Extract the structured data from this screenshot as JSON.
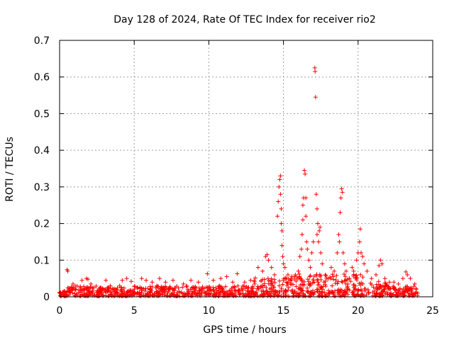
{
  "chart_data": {
    "type": "scatter",
    "title": "Day 128 of 2024, Rate Of TEC Index for receiver rio2",
    "xlabel": "GPS time / hours",
    "ylabel": "ROTI / TECUs",
    "xlim": [
      0,
      25
    ],
    "ylim": [
      0,
      0.7
    ],
    "xticks": [
      "0",
      "5",
      "10",
      "15",
      "20",
      "25"
    ],
    "yticks": [
      "0",
      "0.1",
      "0.2",
      "0.3",
      "0.4",
      "0.5",
      "0.6",
      "0.7"
    ],
    "grid": true,
    "marker": "+",
    "color": "#ff0000",
    "series": [
      {
        "name": "rio2",
        "points": [
          [
            0.0,
            0.012
          ],
          [
            0.5,
            0.074
          ],
          [
            0.55,
            0.07
          ],
          [
            0.9,
            0.035
          ],
          [
            1.5,
            0.045
          ],
          [
            1.8,
            0.05
          ],
          [
            1.9,
            0.048
          ],
          [
            2.1,
            0.035
          ],
          [
            3.1,
            0.045
          ],
          [
            3.4,
            0.03
          ],
          [
            4.2,
            0.045
          ],
          [
            4.5,
            0.05
          ],
          [
            4.8,
            0.042
          ],
          [
            5.5,
            0.05
          ],
          [
            5.8,
            0.045
          ],
          [
            6.2,
            0.04
          ],
          [
            6.7,
            0.05
          ],
          [
            7.1,
            0.04
          ],
          [
            7.6,
            0.045
          ],
          [
            8.3,
            0.035
          ],
          [
            8.8,
            0.045
          ],
          [
            9.3,
            0.04
          ],
          [
            9.9,
            0.063
          ],
          [
            10.3,
            0.045
          ],
          [
            10.8,
            0.05
          ],
          [
            11.2,
            0.055
          ],
          [
            11.6,
            0.04
          ],
          [
            11.9,
            0.063
          ],
          [
            12.4,
            0.04
          ],
          [
            12.8,
            0.045
          ],
          [
            13.3,
            0.08
          ],
          [
            13.6,
            0.07
          ],
          [
            13.8,
            0.11
          ],
          [
            13.9,
            0.115
          ],
          [
            14.0,
            0.1
          ],
          [
            14.2,
            0.08
          ],
          [
            14.4,
            0.06
          ],
          [
            14.6,
            0.22
          ],
          [
            14.65,
            0.26
          ],
          [
            14.7,
            0.3
          ],
          [
            14.75,
            0.32
          ],
          [
            14.8,
            0.33
          ],
          [
            14.8,
            0.28
          ],
          [
            14.85,
            0.24
          ],
          [
            14.85,
            0.2
          ],
          [
            14.9,
            0.18
          ],
          [
            14.9,
            0.14
          ],
          [
            14.95,
            0.11
          ],
          [
            15.0,
            0.09
          ],
          [
            15.1,
            0.08
          ],
          [
            15.3,
            0.06
          ],
          [
            15.5,
            0.05
          ],
          [
            15.8,
            0.06
          ],
          [
            16.0,
            0.07
          ],
          [
            16.1,
            0.11
          ],
          [
            16.2,
            0.13
          ],
          [
            16.25,
            0.17
          ],
          [
            16.3,
            0.21
          ],
          [
            16.3,
            0.25
          ],
          [
            16.35,
            0.27
          ],
          [
            16.4,
            0.345
          ],
          [
            16.45,
            0.335
          ],
          [
            16.5,
            0.27
          ],
          [
            16.5,
            0.22
          ],
          [
            16.55,
            0.15
          ],
          [
            16.6,
            0.13
          ],
          [
            16.7,
            0.1
          ],
          [
            16.8,
            0.08
          ],
          [
            16.9,
            0.12
          ],
          [
            17.0,
            0.15
          ],
          [
            17.1,
            0.625
          ],
          [
            17.12,
            0.615
          ],
          [
            17.15,
            0.545
          ],
          [
            17.2,
            0.28
          ],
          [
            17.25,
            0.24
          ],
          [
            17.25,
            0.17
          ],
          [
            17.3,
            0.2
          ],
          [
            17.35,
            0.15
          ],
          [
            17.4,
            0.18
          ],
          [
            17.45,
            0.19
          ],
          [
            17.5,
            0.12
          ],
          [
            17.6,
            0.09
          ],
          [
            17.8,
            0.06
          ],
          [
            18.2,
            0.08
          ],
          [
            18.4,
            0.07
          ],
          [
            18.6,
            0.12
          ],
          [
            18.7,
            0.17
          ],
          [
            18.75,
            0.15
          ],
          [
            18.8,
            0.23
          ],
          [
            18.85,
            0.27
          ],
          [
            18.9,
            0.295
          ],
          [
            18.95,
            0.285
          ],
          [
            19.0,
            0.12
          ],
          [
            19.1,
            0.09
          ],
          [
            19.2,
            0.07
          ],
          [
            19.4,
            0.05
          ],
          [
            19.6,
            0.08
          ],
          [
            19.7,
            0.07
          ],
          [
            19.9,
            0.1
          ],
          [
            20.0,
            0.12
          ],
          [
            20.1,
            0.15
          ],
          [
            20.15,
            0.185
          ],
          [
            20.2,
            0.12
          ],
          [
            20.3,
            0.11
          ],
          [
            20.4,
            0.09
          ],
          [
            20.6,
            0.07
          ],
          [
            20.9,
            0.05
          ],
          [
            21.2,
            0.06
          ],
          [
            21.4,
            0.085
          ],
          [
            21.5,
            0.1
          ],
          [
            21.6,
            0.09
          ],
          [
            21.8,
            0.05
          ],
          [
            22.1,
            0.04
          ],
          [
            22.4,
            0.04
          ],
          [
            22.7,
            0.035
          ],
          [
            23.0,
            0.05
          ],
          [
            23.2,
            0.068
          ],
          [
            23.3,
            0.06
          ],
          [
            23.5,
            0.05
          ],
          [
            23.8,
            0.035
          ],
          [
            24.0,
            0.01
          ]
        ]
      }
    ]
  }
}
